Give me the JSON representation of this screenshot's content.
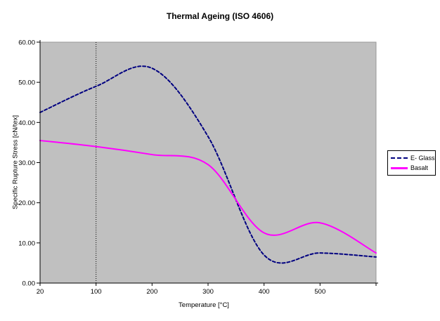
{
  "chart_data": {
    "type": "line",
    "title": "Thermal Ageing (ISO 4606)",
    "xlabel": "Temperature [°C]",
    "ylabel": "Specific Rupture Stress [cN/tex]",
    "categories": [
      20,
      100,
      200,
      300,
      400,
      500,
      600
    ],
    "x_tick_labels": [
      "20",
      "100",
      "200",
      "300",
      "400",
      "500",
      ""
    ],
    "y_tick_labels": [
      "0.00",
      "10.00",
      "20.00",
      "30.00",
      "40.00",
      "50.00",
      "60.00"
    ],
    "ylim": [
      0,
      60
    ],
    "y_major_unit": 10,
    "grid": {
      "vertical_gridline_at_category": 100,
      "horizontal_gridlines": false
    },
    "legend": {
      "position": "right"
    },
    "colors": {
      "plot_background": "#C0C0C0",
      "plot_border": "#999999",
      "axis": "#000000",
      "e_glass_line": "#000080",
      "basalt_line": "#FF00FF"
    },
    "series": [
      {
        "name": "E- Glass",
        "line_style": "dashed",
        "color": "#000080",
        "values": [
          42.5,
          49,
          53.5,
          36.5,
          7,
          7.5,
          6.5
        ]
      },
      {
        "name": "Basalt",
        "line_style": "solid",
        "color": "#FF00FF",
        "values": [
          35.5,
          34,
          32,
          29.5,
          12.5,
          15,
          7.5
        ]
      }
    ]
  }
}
